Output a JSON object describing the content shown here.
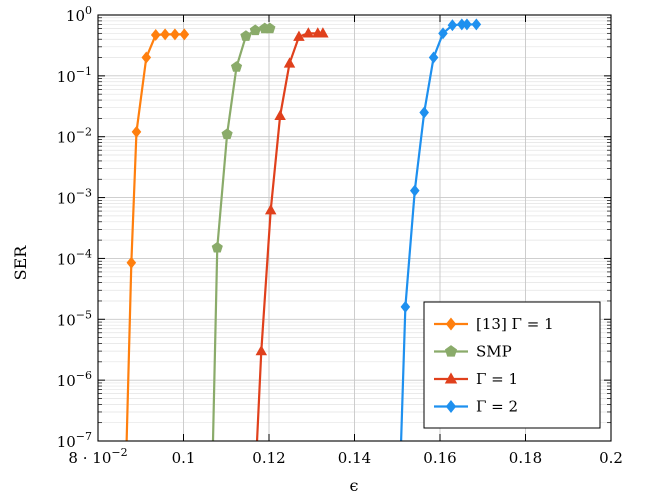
{
  "chart_data": {
    "type": "line",
    "xlabel": "ϵ",
    "ylabel": "SER",
    "xlim": [
      0.08,
      0.2
    ],
    "ylim": [
      1e-07,
      1
    ],
    "yscale": "log",
    "grid": true,
    "legend_position": "bottom-right",
    "x_ticks": [
      {
        "value": 0.08,
        "label": "8 · 10",
        "exp": "−2"
      },
      {
        "value": 0.1,
        "label": "0.1",
        "exp": ""
      },
      {
        "value": 0.12,
        "label": "0.12",
        "exp": ""
      },
      {
        "value": 0.14,
        "label": "0.14",
        "exp": ""
      },
      {
        "value": 0.16,
        "label": "0.16",
        "exp": ""
      },
      {
        "value": 0.18,
        "label": "0.18",
        "exp": ""
      },
      {
        "value": 0.2,
        "label": "0.2",
        "exp": ""
      }
    ],
    "y_ticks": [
      {
        "value": 1,
        "base": "10",
        "exp": "0"
      },
      {
        "value": 0.1,
        "base": "10",
        "exp": "−1"
      },
      {
        "value": 0.01,
        "base": "10",
        "exp": "−2"
      },
      {
        "value": 0.001,
        "base": "10",
        "exp": "−3"
      },
      {
        "value": 0.0001,
        "base": "10",
        "exp": "−4"
      },
      {
        "value": 1e-05,
        "base": "10",
        "exp": "−5"
      },
      {
        "value": 1e-06,
        "base": "10",
        "exp": "−6"
      },
      {
        "value": 1e-07,
        "base": "10",
        "exp": "−7"
      }
    ],
    "series": [
      {
        "name": "[13] Γ = 1",
        "color": "#ff7f0e",
        "marker": "diamond",
        "x": [
          0.0867,
          0.0878,
          0.089,
          0.0913,
          0.0935,
          0.0957,
          0.098,
          0.1002
        ],
        "y": [
          1e-07,
          8.5e-05,
          0.012,
          0.2,
          0.47,
          0.48,
          0.48,
          0.48
        ]
      },
      {
        "name": "SMP",
        "color": "#8aab6a",
        "marker": "pentagon",
        "x": [
          0.1069,
          0.1079,
          0.1102,
          0.1124,
          0.1146,
          0.1168,
          0.119,
          0.1202
        ],
        "y": [
          1e-07,
          0.00015,
          0.011,
          0.14,
          0.45,
          0.56,
          0.6,
          0.6
        ]
      },
      {
        "name": "Γ = 1",
        "color": "#e0401c",
        "marker": "triangle",
        "x": [
          0.1172,
          0.1182,
          0.1204,
          0.1226,
          0.1248,
          0.127,
          0.1292,
          0.1314,
          0.1326
        ],
        "y": [
          1e-07,
          3e-06,
          0.00062,
          0.022,
          0.16,
          0.44,
          0.5,
          0.5,
          0.5
        ]
      },
      {
        "name": "Γ = 2",
        "color": "#1e90ef",
        "marker": "diamond",
        "x": [
          0.1509,
          0.1519,
          0.1541,
          0.1563,
          0.1585,
          0.1607,
          0.1629,
          0.1651,
          0.1663,
          0.1685
        ],
        "y": [
          1e-07,
          1.6e-05,
          0.0013,
          0.025,
          0.2,
          0.5,
          0.68,
          0.7,
          0.7,
          0.7
        ]
      }
    ]
  }
}
